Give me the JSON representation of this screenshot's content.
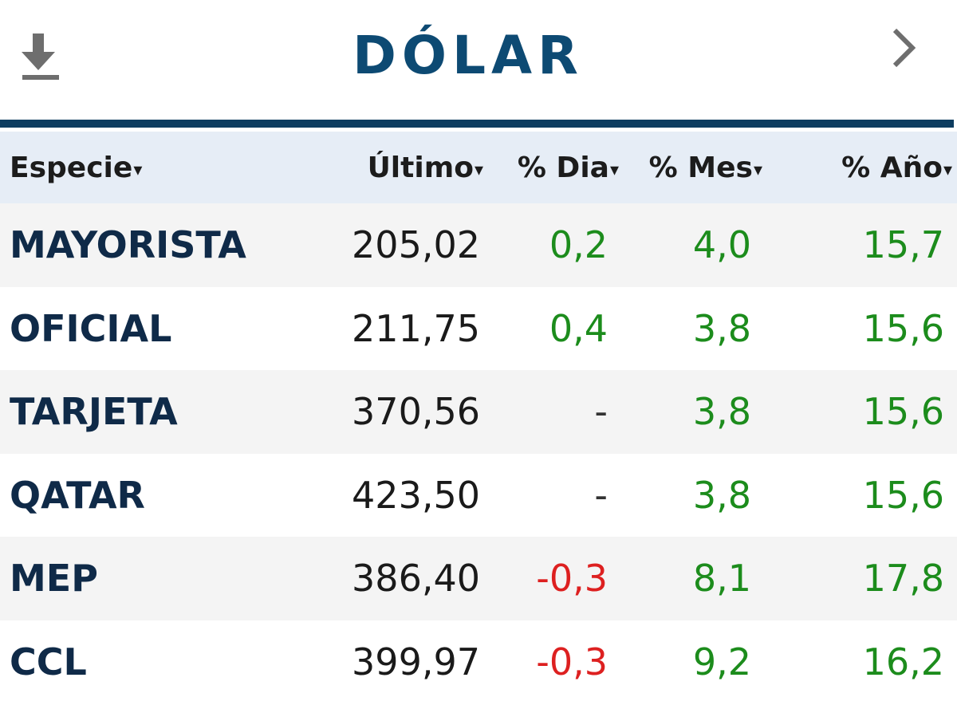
{
  "header": {
    "title": "DÓLAR",
    "download_icon": "download-icon",
    "next_icon": "chevron-right-icon",
    "title_color": "#0d4a73"
  },
  "table": {
    "columns": [
      "Especie",
      "Último",
      "% Dia",
      "% Mes",
      "% Año"
    ],
    "sort_indicator": "▾",
    "rows": [
      {
        "name": "MAYORISTA",
        "last": "205,02",
        "day": "0,2",
        "month": "4,0",
        "year": "15,7"
      },
      {
        "name": "OFICIAL",
        "last": "211,75",
        "day": "0,4",
        "month": "3,8",
        "year": "15,6"
      },
      {
        "name": "TARJETA",
        "last": "370,56",
        "day": "-",
        "month": "3,8",
        "year": "15,6"
      },
      {
        "name": "QATAR",
        "last": "423,50",
        "day": "-",
        "month": "3,8",
        "year": "15,6"
      },
      {
        "name": "MEP",
        "last": "386,40",
        "day": "-0,3",
        "month": "8,1",
        "year": "17,8"
      },
      {
        "name": "CCL",
        "last": "399,97",
        "day": "-0,3",
        "month": "9,2",
        "year": "16,2"
      }
    ]
  },
  "colors": {
    "positive": "#1c8c1c",
    "negative": "#dd2020",
    "header_row_bg": "#e6edf6",
    "rule": "#0d3d60"
  }
}
